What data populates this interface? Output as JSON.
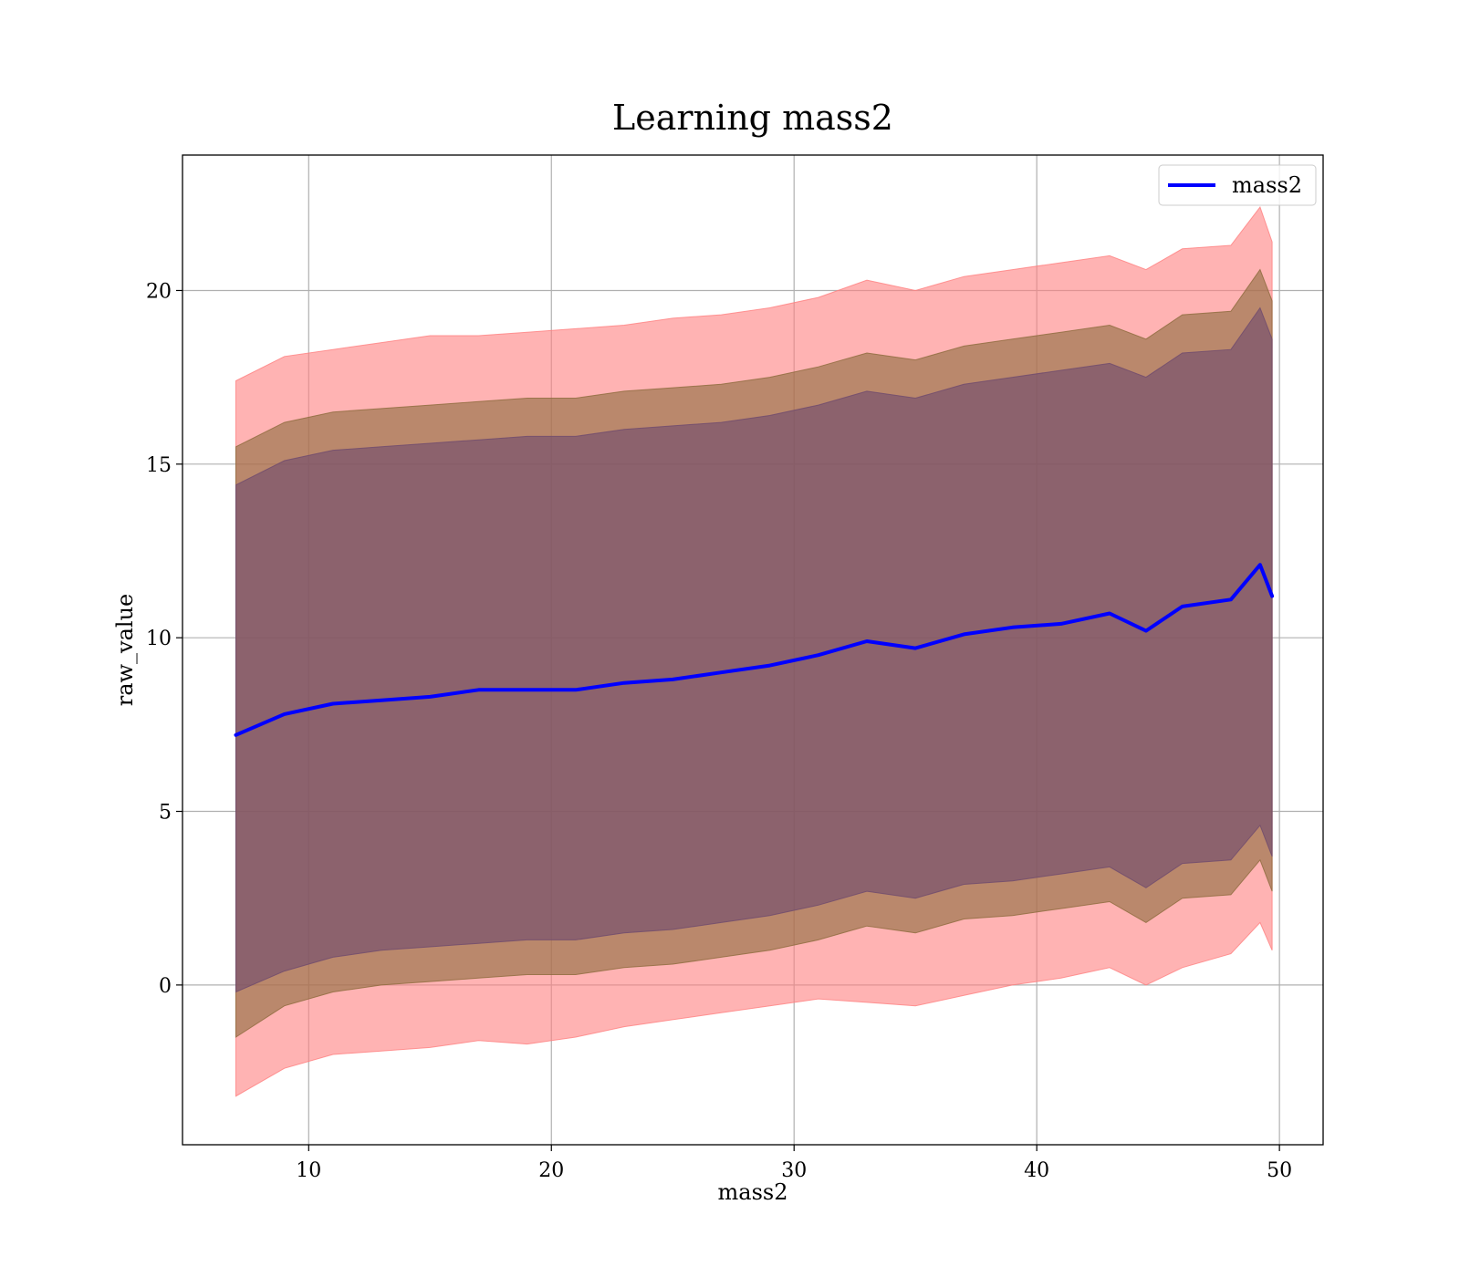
{
  "chart_data": {
    "type": "line",
    "title": "Learning mass2",
    "xlabel": "mass2",
    "ylabel": "raw_value",
    "xlim": [
      4.8,
      51.8
    ],
    "ylim": [
      -4.6,
      23.9
    ],
    "xticks": [
      10,
      20,
      30,
      40,
      50
    ],
    "yticks": [
      0,
      5,
      10,
      15,
      20
    ],
    "grid": true,
    "legend_position": "top-right",
    "x": [
      7.0,
      9.0,
      11.0,
      13.0,
      15.0,
      17.0,
      19.0,
      21.0,
      23.0,
      25.0,
      27.0,
      29.0,
      31.0,
      33.0,
      35.0,
      37.0,
      39.0,
      41.0,
      43.0,
      44.5,
      46.0,
      48.0,
      49.2,
      49.7
    ],
    "series": [
      {
        "name": "mass2",
        "color": "#0000ff",
        "values": [
          7.2,
          7.8,
          8.1,
          8.2,
          8.3,
          8.5,
          8.5,
          8.5,
          8.7,
          8.8,
          9.0,
          9.2,
          9.5,
          9.9,
          9.7,
          10.1,
          10.3,
          10.4,
          10.7,
          10.2,
          10.9,
          11.1,
          12.1,
          11.2
        ]
      }
    ],
    "bands": [
      {
        "color": "#ff8080",
        "lower": [
          -3.2,
          -2.4,
          -2.0,
          -1.9,
          -1.8,
          -1.6,
          -1.7,
          -1.5,
          -1.2,
          -1.0,
          -0.8,
          -0.6,
          -0.4,
          -0.5,
          -0.6,
          -0.3,
          0.0,
          0.2,
          0.5,
          0.0,
          0.5,
          0.9,
          1.8,
          1.0
        ],
        "upper": [
          17.4,
          18.1,
          18.3,
          18.5,
          18.7,
          18.7,
          18.8,
          18.9,
          19.0,
          19.2,
          19.3,
          19.5,
          19.8,
          20.3,
          20.0,
          20.4,
          20.6,
          20.8,
          21.0,
          20.6,
          21.2,
          21.3,
          22.4,
          21.4
        ]
      },
      {
        "color": "#8c6a3c",
        "lower": [
          -1.5,
          -0.6,
          -0.2,
          0.0,
          0.1,
          0.2,
          0.3,
          0.3,
          0.5,
          0.6,
          0.8,
          1.0,
          1.3,
          1.7,
          1.5,
          1.9,
          2.0,
          2.2,
          2.4,
          1.8,
          2.5,
          2.6,
          3.6,
          2.7
        ],
        "upper": [
          15.5,
          16.2,
          16.5,
          16.6,
          16.7,
          16.8,
          16.9,
          16.9,
          17.1,
          17.2,
          17.3,
          17.5,
          17.8,
          18.2,
          18.0,
          18.4,
          18.6,
          18.8,
          19.0,
          18.6,
          19.3,
          19.4,
          20.6,
          19.7
        ]
      },
      {
        "color": "#6e4a6e",
        "lower": [
          -0.2,
          0.4,
          0.8,
          1.0,
          1.1,
          1.2,
          1.3,
          1.3,
          1.5,
          1.6,
          1.8,
          2.0,
          2.3,
          2.7,
          2.5,
          2.9,
          3.0,
          3.2,
          3.4,
          2.8,
          3.5,
          3.6,
          4.6,
          3.7
        ],
        "upper": [
          14.4,
          15.1,
          15.4,
          15.5,
          15.6,
          15.7,
          15.8,
          15.8,
          16.0,
          16.1,
          16.2,
          16.4,
          16.7,
          17.1,
          16.9,
          17.3,
          17.5,
          17.7,
          17.9,
          17.5,
          18.2,
          18.3,
          19.5,
          18.6
        ]
      }
    ]
  }
}
